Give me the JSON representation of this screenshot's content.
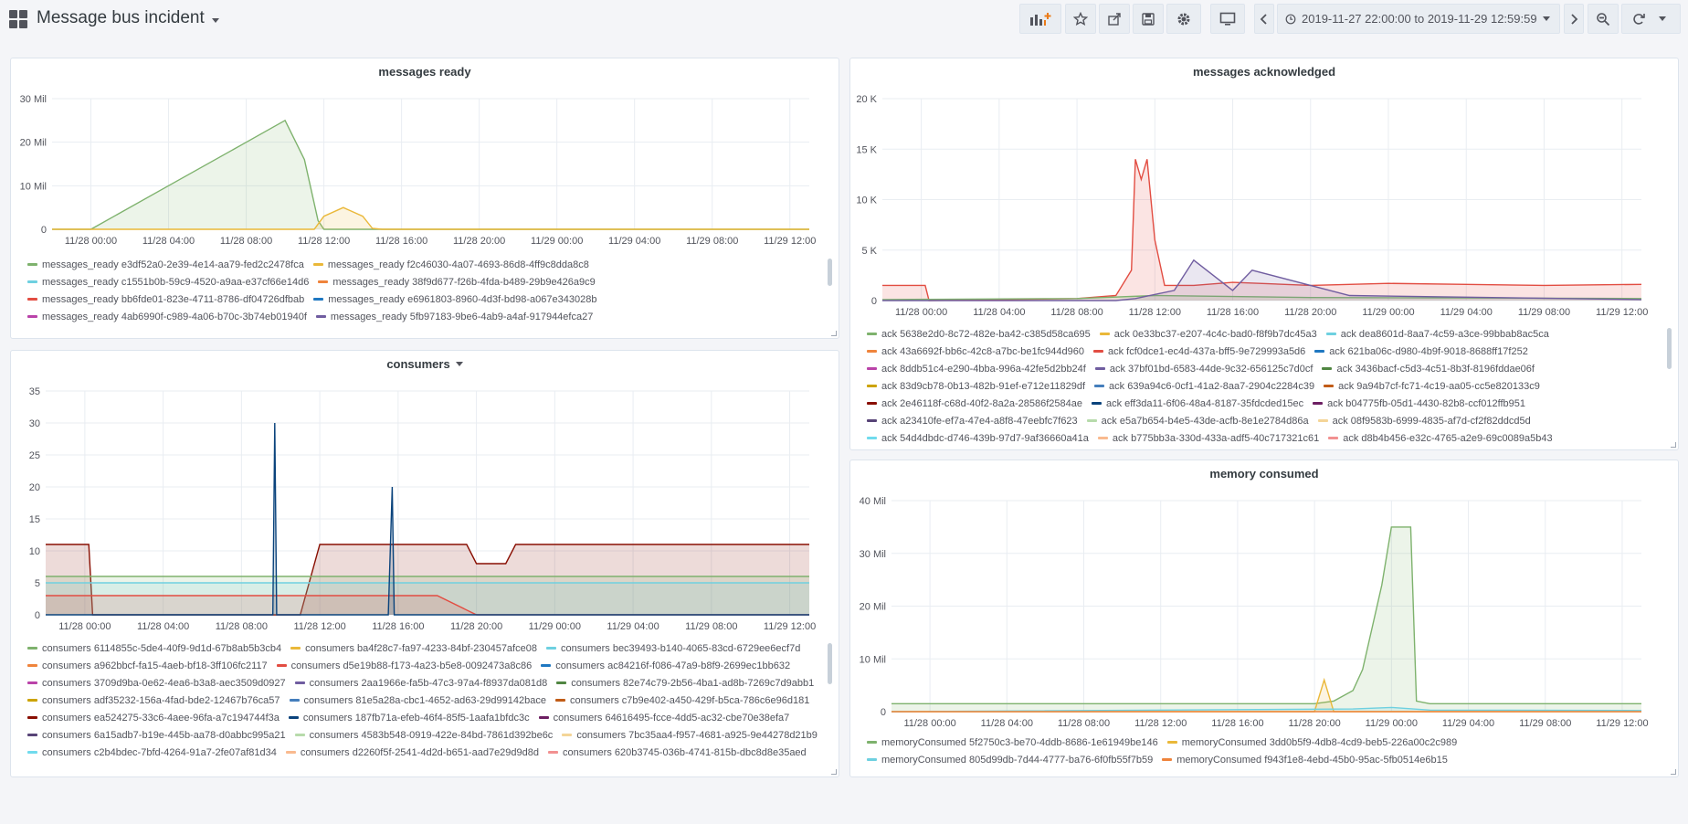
{
  "dashboard": {
    "title": "Message bus incident"
  },
  "time_range": {
    "label": "2019-11-27 22:00:00 to 2019-11-29 12:59:59"
  },
  "toolbar_icons": [
    "add-panel-icon",
    "star-icon",
    "share-icon",
    "save-icon",
    "gear-icon",
    "tv-mode-icon",
    "chevron-left-icon",
    "clock-icon",
    "chevron-right-icon",
    "zoom-out-icon",
    "refresh-icon"
  ],
  "colors": {
    "green": "#7eb26d",
    "yellow": "#eab839",
    "cyan": "#6ed0e0",
    "orange": "#ef843c",
    "red": "#e24d42",
    "blue": "#1f78c1",
    "purple": "#ba43a9",
    "violet": "#705da0",
    "darkgreen": "#508642",
    "gold": "#cca300",
    "navy": "#447ebc",
    "rust": "#c15c17",
    "maroon": "#890f02",
    "darkblue": "#0a437c",
    "plum": "#6d1f62",
    "steel": "#584477",
    "mint": "#b7dbab",
    "sand": "#f4d598",
    "sky": "#70dbed",
    "peach": "#f9ba8f",
    "pink": "#f29191"
  },
  "panels": {
    "messages_ready": {
      "title": "messages ready",
      "chart_data": {
        "type": "area",
        "x_ticks": [
          "11/28 00:00",
          "11/28 04:00",
          "11/28 08:00",
          "11/28 12:00",
          "11/28 16:00",
          "11/28 20:00",
          "11/29 00:00",
          "11/29 04:00",
          "11/29 08:00",
          "11/29 12:00"
        ],
        "y_ticks": [
          "0",
          "10 Mil",
          "20 Mil",
          "30 Mil"
        ],
        "ylim": [
          0,
          30000000
        ],
        "x_hours_range": [
          -2,
          37
        ],
        "series": [
          {
            "name": "messages_ready e3df52a0-2e39-4e14-aa79-fed2c2478fca",
            "color": "green",
            "x": [
              -2,
              0,
              4,
              8,
              10,
              11,
              11.7,
              12,
              37
            ],
            "y": [
              0,
              0,
              10000000,
              20000000,
              25000000,
              16000000,
              2000000,
              0,
              0
            ]
          },
          {
            "name": "messages_ready f2c46030-4a07-4693-86d8-4ff9c8dda8c8",
            "color": "yellow",
            "x": [
              -2,
              11.5,
              12,
              13,
              14,
              14.5,
              15,
              37
            ],
            "y": [
              0,
              0,
              3000000,
              5000000,
              3000000,
              200000,
              0,
              0
            ]
          }
        ],
        "legend": [
          [
            {
              "name": "messages_ready e3df52a0-2e39-4e14-aa79-fed2c2478fca",
              "color": "green"
            },
            {
              "name": "messages_ready f2c46030-4a07-4693-86d8-4ff9c8dda8c8",
              "color": "yellow"
            }
          ],
          [
            {
              "name": "messages_ready c1551b0b-59c9-4520-a9aa-e37cf66e14d6",
              "color": "cyan"
            },
            {
              "name": "messages_ready 38f9d677-f26b-4fda-b489-29b9e426a9c9",
              "color": "orange"
            }
          ],
          [
            {
              "name": "messages_ready bb6fde01-823e-4711-8786-df04726dfbab",
              "color": "red"
            },
            {
              "name": "messages_ready e6961803-8960-4d3f-bd98-a067e343028b",
              "color": "blue"
            }
          ],
          [
            {
              "name": "messages_ready 4ab6990f-c989-4a06-b70c-3b74eb01940f",
              "color": "purple"
            },
            {
              "name": "messages_ready 5fb97183-9be6-4ab9-a4af-917944efca27",
              "color": "violet"
            }
          ]
        ]
      }
    },
    "consumers": {
      "title": "consumers",
      "chart_data": {
        "type": "area",
        "x_ticks": [
          "11/28 00:00",
          "11/28 04:00",
          "11/28 08:00",
          "11/28 12:00",
          "11/28 16:00",
          "11/28 20:00",
          "11/29 00:00",
          "11/29 04:00",
          "11/29 08:00",
          "11/29 12:00"
        ],
        "y_ticks": [
          "0",
          "5",
          "10",
          "15",
          "20",
          "25",
          "30",
          "35"
        ],
        "ylim": [
          0,
          35
        ],
        "x_hours_range": [
          -2,
          37
        ],
        "series": [
          {
            "name": "consumers ea524275-33c6-4aee-96fa-a7c194744f3a",
            "color": "maroon",
            "x": [
              -2,
              0.2,
              0.4,
              11,
              12,
              15,
              16,
              19.5,
              20,
              21.5,
              22,
              37
            ],
            "y": [
              11,
              11,
              0,
              0,
              11,
              11,
              11,
              11,
              8,
              8,
              11,
              11
            ]
          },
          {
            "name": "consumers 6114855c-5de4-40f9-9d1d-67b8ab5b3cb4",
            "color": "green",
            "x": [
              -2,
              37
            ],
            "y": [
              6,
              6
            ]
          },
          {
            "name": "consumers bec39493-b140-4065-83cd-6729ee6ecf7d",
            "color": "cyan",
            "x": [
              -2,
              37
            ],
            "y": [
              5,
              5
            ]
          },
          {
            "name": "consumers d5e19b88-f173-4a23-b5e8-0092473a8c86",
            "color": "red",
            "x": [
              -2,
              4,
              8,
              10,
              12,
              14,
              16,
              18,
              20,
              37
            ],
            "y": [
              3,
              3,
              3,
              3,
              3,
              3,
              3,
              3,
              0,
              0
            ]
          },
          {
            "name": "consumers 187fb71a-efeb-46f4-85f5-1aafa1bfdc3c",
            "color": "darkblue",
            "x": [
              -2,
              9,
              9.6,
              9.7,
              9.8,
              10.3,
              10.4,
              10.5,
              11,
              15.5,
              15.7,
              15.8,
              16,
              37
            ],
            "y": [
              0,
              0,
              0,
              30,
              0,
              0,
              0,
              0,
              0,
              0,
              20,
              0,
              0,
              0
            ]
          }
        ],
        "legend": [
          [
            {
              "name": "consumers 6114855c-5de4-40f9-9d1d-67b8ab5b3cb4",
              "color": "green"
            },
            {
              "name": "consumers ba4f28c7-fa97-4233-84bf-230457afce08",
              "color": "yellow"
            },
            {
              "name": "consumers bec39493-b140-4065-83cd-6729ee6ecf7d",
              "color": "cyan"
            }
          ],
          [
            {
              "name": "consumers a962bbcf-fa15-4aeb-bf18-3ff106fc2117",
              "color": "orange"
            },
            {
              "name": "consumers d5e19b88-f173-4a23-b5e8-0092473a8c86",
              "color": "red"
            },
            {
              "name": "consumers ac84216f-f086-47a9-b8f9-2699ec1bb632",
              "color": "blue"
            }
          ],
          [
            {
              "name": "consumers 3709d9ba-0e62-4ea6-b3a8-aec3509d0927",
              "color": "purple"
            },
            {
              "name": "consumers 2aa1966e-fa5b-47c3-97a4-f8937da081d8",
              "color": "violet"
            },
            {
              "name": "consumers 82e74c79-2b56-4ba1-ad8b-7269c7d9abb1",
              "color": "darkgreen"
            }
          ],
          [
            {
              "name": "consumers adf35232-156a-4fad-bde2-12467b76ca57",
              "color": "gold"
            },
            {
              "name": "consumers 81e5a28a-cbc1-4652-ad63-29d99142bace",
              "color": "navy"
            },
            {
              "name": "consumers c7b9e402-a450-429f-b5ca-786c6e96d181",
              "color": "rust"
            }
          ],
          [
            {
              "name": "consumers ea524275-33c6-4aee-96fa-a7c194744f3a",
              "color": "maroon"
            },
            {
              "name": "consumers 187fb71a-efeb-46f4-85f5-1aafa1bfdc3c",
              "color": "darkblue"
            },
            {
              "name": "consumers 64616495-fcce-4dd5-ac32-cbe70e38efa7",
              "color": "plum"
            }
          ],
          [
            {
              "name": "consumers 6a15adb7-b19e-445b-aa78-d0abbc995a21",
              "color": "steel"
            },
            {
              "name": "consumers 4583b548-0919-422e-84bd-7861d392be6c",
              "color": "mint"
            },
            {
              "name": "consumers 7bc35aa4-f957-4681-a925-9e44278d21b9",
              "color": "sand"
            }
          ],
          [
            {
              "name": "consumers c2b4bdec-7bfd-4264-91a7-2fe07af81d34",
              "color": "sky"
            },
            {
              "name": "consumers d2260f5f-2541-4d2d-b651-aad7e29d9d8d",
              "color": "peach"
            },
            {
              "name": "consumers 620b3745-036b-4741-815b-dbc8d8e35aed",
              "color": "pink"
            }
          ]
        ]
      }
    },
    "messages_acknowledged": {
      "title": "messages acknowledged",
      "chart_data": {
        "type": "area",
        "x_ticks": [
          "11/28 00:00",
          "11/28 04:00",
          "11/28 08:00",
          "11/28 12:00",
          "11/28 16:00",
          "11/28 20:00",
          "11/29 00:00",
          "11/29 04:00",
          "11/29 08:00",
          "11/29 12:00"
        ],
        "y_ticks": [
          "0",
          "5 K",
          "10 K",
          "15 K",
          "20 K"
        ],
        "ylim": [
          0,
          20000
        ],
        "x_hours_range": [
          -2,
          37
        ],
        "series": [
          {
            "name": "ack fcf0dce1-ec4d-437a-bff5-9e729993a5d6",
            "color": "red",
            "x": [
              -2,
              0.2,
              0.4,
              8,
              10,
              10.8,
              11,
              11.3,
              11.6,
              12,
              12.5,
              14,
              16,
              20,
              24,
              28,
              32,
              37
            ],
            "y": [
              1500,
              1500,
              0,
              200,
              500,
              3000,
              14000,
              12000,
              14000,
              6000,
              1500,
              1500,
              1800,
              1500,
              1700,
              1600,
              1500,
              1600
            ]
          },
          {
            "name": "ack 5638e2d0-8c72-482e-ba42-c385d58ca695",
            "color": "green",
            "x": [
              -2,
              8,
              12,
              16,
              20,
              37
            ],
            "y": [
              100,
              200,
              500,
              400,
              300,
              200
            ]
          },
          {
            "name": "ack 37bf01bd-6583-44de-9c32-656125c7d0cf",
            "color": "violet",
            "x": [
              -2,
              10,
              11,
              13,
              14,
              16,
              17,
              22,
              37
            ],
            "y": [
              0,
              0,
              200,
              1000,
              4000,
              1000,
              3000,
              500,
              100
            ]
          }
        ],
        "legend": [
          [
            {
              "name": "ack 5638e2d0-8c72-482e-ba42-c385d58ca695",
              "color": "green"
            },
            {
              "name": "ack 0e33bc37-e207-4c4c-bad0-f8f9b7dc45a3",
              "color": "yellow"
            },
            {
              "name": "ack dea8601d-8aa7-4c59-a3ce-99bbab8ac5ca",
              "color": "cyan"
            }
          ],
          [
            {
              "name": "ack 43a6692f-bb6c-42c8-a7bc-be1fc944d960",
              "color": "orange"
            },
            {
              "name": "ack fcf0dce1-ec4d-437a-bff5-9e729993a5d6",
              "color": "red"
            },
            {
              "name": "ack 621ba06c-d980-4b9f-9018-8688ff17f252",
              "color": "blue"
            }
          ],
          [
            {
              "name": "ack 8ddb51c4-e290-4bba-996a-42fe5d2bb24f",
              "color": "purple"
            },
            {
              "name": "ack 37bf01bd-6583-44de-9c32-656125c7d0cf",
              "color": "violet"
            },
            {
              "name": "ack 3436bacf-c5d3-4c51-8b3f-8196fddae06f",
              "color": "darkgreen"
            }
          ],
          [
            {
              "name": "ack 83d9cb78-0b13-482b-91ef-e712e11829df",
              "color": "gold"
            },
            {
              "name": "ack 639a94c6-0cf1-41a2-8aa7-2904c2284c39",
              "color": "navy"
            },
            {
              "name": "ack 9a94b7cf-fc71-4c19-aa05-cc5e820133c9",
              "color": "rust"
            }
          ],
          [
            {
              "name": "ack 2e46118f-c68d-40f2-8a2a-28586f2584ae",
              "color": "maroon"
            },
            {
              "name": "ack eff3da11-6f06-48a4-8187-35fdcded15ec",
              "color": "darkblue"
            },
            {
              "name": "ack b04775fb-05d1-4430-82b8-ccf012ffb951",
              "color": "plum"
            }
          ],
          [
            {
              "name": "ack a23410fe-ef7a-47e4-a8f8-47eebfc7f623",
              "color": "steel"
            },
            {
              "name": "ack e5a7b654-b4e5-43de-acfb-8e1e2784d86a",
              "color": "mint"
            },
            {
              "name": "ack 08f9583b-6999-4835-af7d-cf2f82ddcd5d",
              "color": "sand"
            }
          ],
          [
            {
              "name": "ack 54d4dbdc-d746-439b-97d7-9af36660a41a",
              "color": "sky"
            },
            {
              "name": "ack b775bb3a-330d-433a-adf5-40c717321c61",
              "color": "peach"
            },
            {
              "name": "ack d8b4b456-e32c-4765-a2e9-69c0089a5b43",
              "color": "pink"
            }
          ]
        ]
      }
    },
    "memory_consumed": {
      "title": "memory consumed",
      "chart_data": {
        "type": "area",
        "x_ticks": [
          "11/28 00:00",
          "11/28 04:00",
          "11/28 08:00",
          "11/28 12:00",
          "11/28 16:00",
          "11/28 20:00",
          "11/29 00:00",
          "11/29 04:00",
          "11/29 08:00",
          "11/29 12:00"
        ],
        "y_ticks": [
          "0",
          "10 Mil",
          "20 Mil",
          "30 Mil",
          "40 Mil"
        ],
        "ylim": [
          0,
          40000000
        ],
        "x_hours_range": [
          -2,
          37
        ],
        "series": [
          {
            "name": "memoryConsumed 5f2750c3-be70-4ddb-8686-1e61949be146",
            "color": "green",
            "x": [
              -2,
              20,
              21,
              22,
              22.5,
              23,
              23.5,
              24,
              25,
              25.3,
              26,
              37
            ],
            "y": [
              1500000,
              1500000,
              2000000,
              4000000,
              8000000,
              16000000,
              24000000,
              35000000,
              35000000,
              2000000,
              1500000,
              1500000
            ]
          },
          {
            "name": "memoryConsumed 3dd0b5f9-4db8-4cd9-beb5-226a00c2c989",
            "color": "yellow",
            "x": [
              -2,
              20,
              20.5,
              21,
              37
            ],
            "y": [
              0,
              0,
              6000000,
              0,
              0
            ]
          },
          {
            "name": "memoryConsumed 805d99db-7d44-4777-ba76-6f0fb55f7b59",
            "color": "cyan",
            "x": [
              -2,
              22,
              24,
              26,
              37
            ],
            "y": [
              0,
              500000,
              800000,
              300000,
              200000
            ]
          },
          {
            "name": "memoryConsumed f943f1e8-4ebd-45b0-95ac-5fb0514e6b15",
            "color": "orange",
            "x": [
              -2,
              37
            ],
            "y": [
              0,
              0
            ]
          }
        ],
        "legend": [
          [
            {
              "name": "memoryConsumed 5f2750c3-be70-4ddb-8686-1e61949be146",
              "color": "green"
            },
            {
              "name": "memoryConsumed 3dd0b5f9-4db8-4cd9-beb5-226a00c2c989",
              "color": "yellow"
            }
          ],
          [
            {
              "name": "memoryConsumed 805d99db-7d44-4777-ba76-6f0fb55f7b59",
              "color": "cyan"
            },
            {
              "name": "memoryConsumed f943f1e8-4ebd-45b0-95ac-5fb0514e6b15",
              "color": "orange"
            }
          ]
        ]
      }
    }
  }
}
